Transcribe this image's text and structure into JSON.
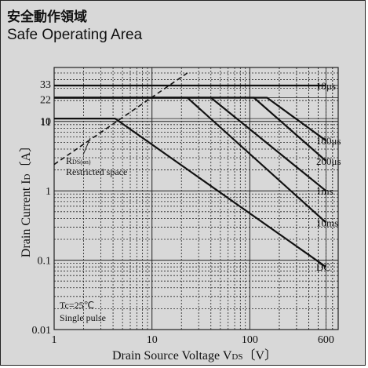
{
  "title_jp": "安全動作領域",
  "title_en": "Safe Operating Area",
  "chart_data": {
    "type": "line",
    "x_scale": "log",
    "y_scale": "log",
    "xlim": [
      1,
      800
    ],
    "ylim": [
      0.01,
      60
    ],
    "xlabel": "Drain Source Voltage V​DS〔V〕",
    "xlabel_main": "Drain Source Voltage  V",
    "xlabel_sub": "DS",
    "xlabel_unit": "〔V〕",
    "ylabel_main": "Drain Current  I",
    "ylabel_sub": "D",
    "ylabel_unit": "〔A〕",
    "x_ticks": [
      "1",
      "10",
      "100",
      "600"
    ],
    "x_tick_values": [
      1,
      10,
      100,
      600
    ],
    "y_ticks": [
      "0.01",
      "0.1",
      "1",
      "10",
      "11",
      "22",
      "33"
    ],
    "y_tick_values": [
      0.01,
      0.1,
      1,
      10,
      11,
      22,
      33
    ],
    "grid": true,
    "series": [
      {
        "name": "10μs",
        "points": [
          [
            1,
            33
          ],
          [
            600,
            33
          ]
        ]
      },
      {
        "name": "100μs",
        "points": [
          [
            1,
            22
          ],
          [
            150,
            22
          ],
          [
            600,
            5.3
          ]
        ]
      },
      {
        "name": "200μs",
        "points": [
          [
            1,
            22
          ],
          [
            110,
            22
          ],
          [
            600,
            2.7
          ]
        ]
      },
      {
        "name": "1ms",
        "points": [
          [
            1,
            22
          ],
          [
            40,
            22
          ],
          [
            600,
            1.0
          ]
        ]
      },
      {
        "name": "10ms",
        "points": [
          [
            1,
            22
          ],
          [
            23,
            22
          ],
          [
            600,
            0.35
          ]
        ]
      },
      {
        "name": "DC",
        "points": [
          [
            1,
            11
          ],
          [
            4.2,
            11
          ],
          [
            600,
            0.08
          ]
        ]
      }
    ],
    "rds_on_limit": {
      "points": [
        [
          1,
          2.4
        ],
        [
          23,
          50
        ]
      ]
    },
    "annotations": {
      "rds_main": "R",
      "rds_sub": "DS(on)",
      "restricted": "Restricted space",
      "tc": "Tc=25℃",
      "pulse": "Single pulse"
    }
  }
}
